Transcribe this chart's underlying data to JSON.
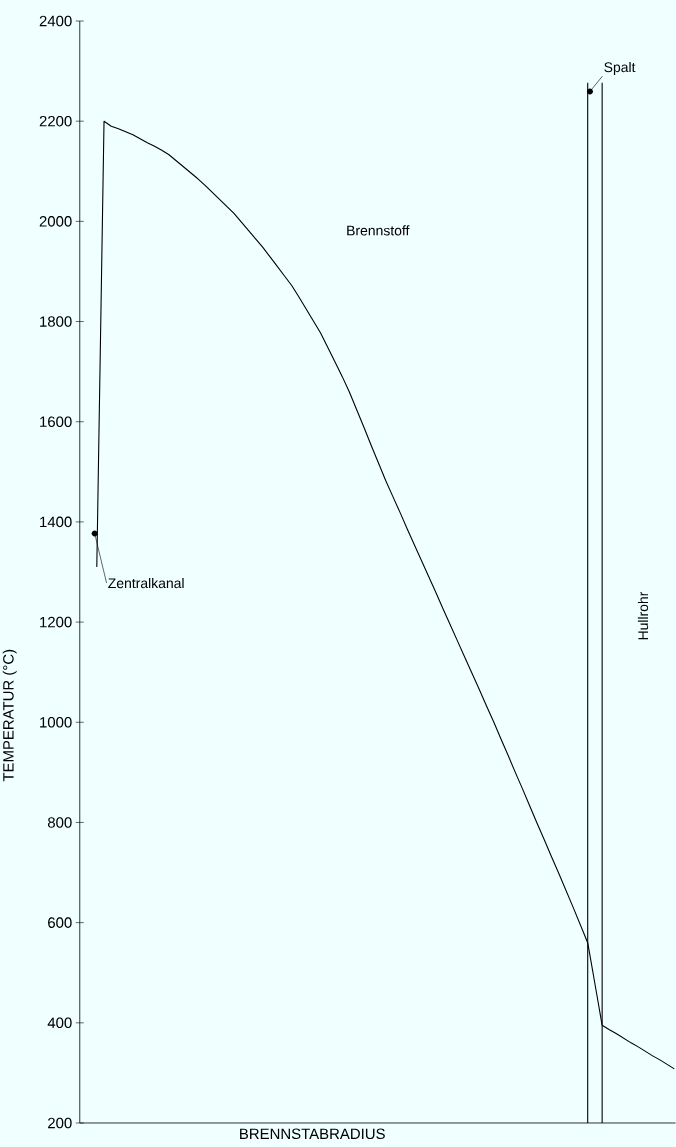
{
  "chart_data": {
    "type": "line",
    "xlabel": "BRENNSTABRADIUS",
    "ylabel": "TEMPERATUR (°C)",
    "categories": [
      null,
      null,
      null,
      null,
      null,
      null,
      null,
      null,
      null,
      null,
      null,
      null,
      null,
      null,
      null,
      null,
      null,
      null,
      null,
      null,
      null,
      null,
      null,
      null,
      null,
      null,
      null,
      null,
      null,
      null,
      null,
      null,
      null,
      null,
      null,
      null,
      null,
      null,
      null,
      null,
      null,
      null,
      null,
      null,
      null,
      null,
      null,
      null,
      null,
      null,
      null,
      null,
      null,
      null,
      null,
      null,
      null,
      null,
      null,
      null,
      null,
      null,
      null,
      null,
      null,
      null,
      null,
      null,
      null,
      null,
      null,
      null,
      null,
      null,
      null,
      null,
      null,
      null,
      null,
      null,
      null
    ],
    "ylim": [
      200,
      2400
    ],
    "yticks": [
      200,
      400,
      600,
      800,
      1000,
      1200,
      1400,
      1600,
      1800,
      2000,
      2200,
      2400
    ],
    "tick_labels": "y",
    "marker": "none",
    "line_style": "solid",
    "series": [
      {
        "color": "#000000",
        "values": [
          1310,
          2200,
          2190,
          2185,
          2179,
          2173,
          2165,
          2157,
          2150,
          2142,
          2133,
          2121,
          2109,
          2097,
          2085,
          2072,
          2058,
          2044,
          2030,
          2016,
          1999,
          1982,
          1965,
          1948,
          1929,
          1910,
          1891,
          1872,
          1849,
          1825,
          1801,
          1777,
          1748,
          1719,
          1690,
          1659,
          1624,
          1589,
          1553,
          1518,
          1483,
          1451,
          1419,
          1386,
          1354,
          1322,
          1290,
          1258,
          1225,
          1193,
          1161,
          1129,
          1097,
          1065,
          1032,
          1000,
          966,
          933,
          899,
          866,
          832,
          798,
          765,
          731,
          698,
          664,
          630,
          595,
          560,
          478,
          395,
          386,
          378,
          369,
          360,
          352,
          343,
          334,
          326,
          317,
          308
        ]
      }
    ],
    "annotations": [
      "Zentralkanal",
      "Brennstoff",
      "Spalt",
      "Hullrohr"
    ]
  }
}
